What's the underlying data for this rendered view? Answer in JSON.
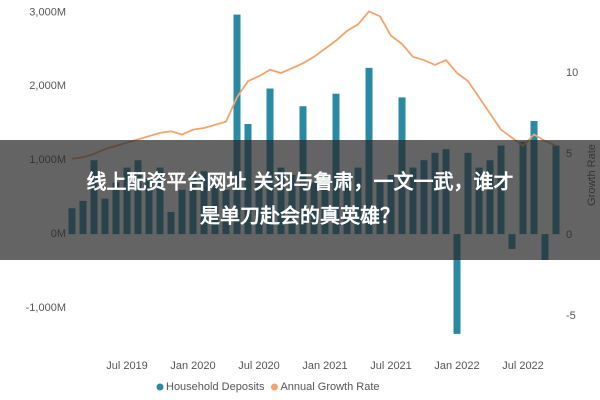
{
  "chart_data": {
    "type": "bar-line",
    "categories": [
      null,
      null,
      null,
      null,
      null,
      "Jul 2019",
      null,
      null,
      null,
      null,
      null,
      "Jan 2020",
      null,
      null,
      null,
      null,
      null,
      "Jul 2020",
      null,
      null,
      null,
      null,
      null,
      "Jan 2021",
      null,
      null,
      null,
      null,
      null,
      "Jul 2021",
      null,
      null,
      null,
      null,
      null,
      "Jan 2022",
      null,
      null,
      null,
      null,
      null,
      "Jul 2022",
      null,
      null,
      null
    ],
    "series": [
      {
        "name": "Household Deposits",
        "color": "#2a8aa4",
        "axis": "y",
        "values": [
          350,
          450,
          1000,
          480,
          700,
          900,
          1000,
          750,
          900,
          300,
          600,
          800,
          850,
          700,
          600,
          2970,
          1490,
          700,
          1970,
          900,
          800,
          1730,
          700,
          800,
          1900,
          800,
          900,
          2250,
          700,
          800,
          1850,
          900,
          1000,
          1100,
          1150,
          -1350,
          1100,
          900,
          1000,
          1200,
          -200,
          1250,
          1530,
          -350,
          1200
        ]
      },
      {
        "name": "Annual Growth Rate",
        "color": "#f4a36a",
        "axis": "y2",
        "values": [
          4.7,
          4.8,
          5.0,
          5.3,
          5.5,
          5.7,
          5.9,
          6.1,
          6.3,
          6.4,
          6.2,
          6.5,
          6.6,
          6.8,
          7.0,
          8.5,
          9.5,
          9.8,
          10.2,
          10.0,
          10.3,
          10.6,
          11.0,
          11.5,
          12.0,
          12.6,
          13.0,
          13.8,
          13.5,
          12.3,
          11.8,
          11.0,
          10.8,
          10.5,
          10.8,
          10.0,
          9.5,
          8.5,
          7.5,
          6.5,
          6.0,
          5.5,
          6.2,
          5.8,
          5.5
        ]
      }
    ],
    "ylim": [
      -1500,
      3100
    ],
    "yticks": [
      {
        "value": 3000,
        "label": "3,000M"
      },
      {
        "value": 2000,
        "label": "2,000M"
      },
      {
        "value": 1000,
        "label": "1,000M"
      },
      {
        "value": 0,
        "label": "0M"
      },
      {
        "value": -1000,
        "label": "-1,000M"
      }
    ],
    "y2lim": [
      -6.8,
      14.2
    ],
    "y2ticks": [
      10,
      5,
      0,
      -5
    ],
    "y2label": "Growth Rate",
    "legend": "bottom"
  },
  "banner": {
    "lines": [
      "线上配资平台网址 关羽与鲁肃，一文一武，谁才",
      "是单刀赴会的真英雄？"
    ]
  }
}
